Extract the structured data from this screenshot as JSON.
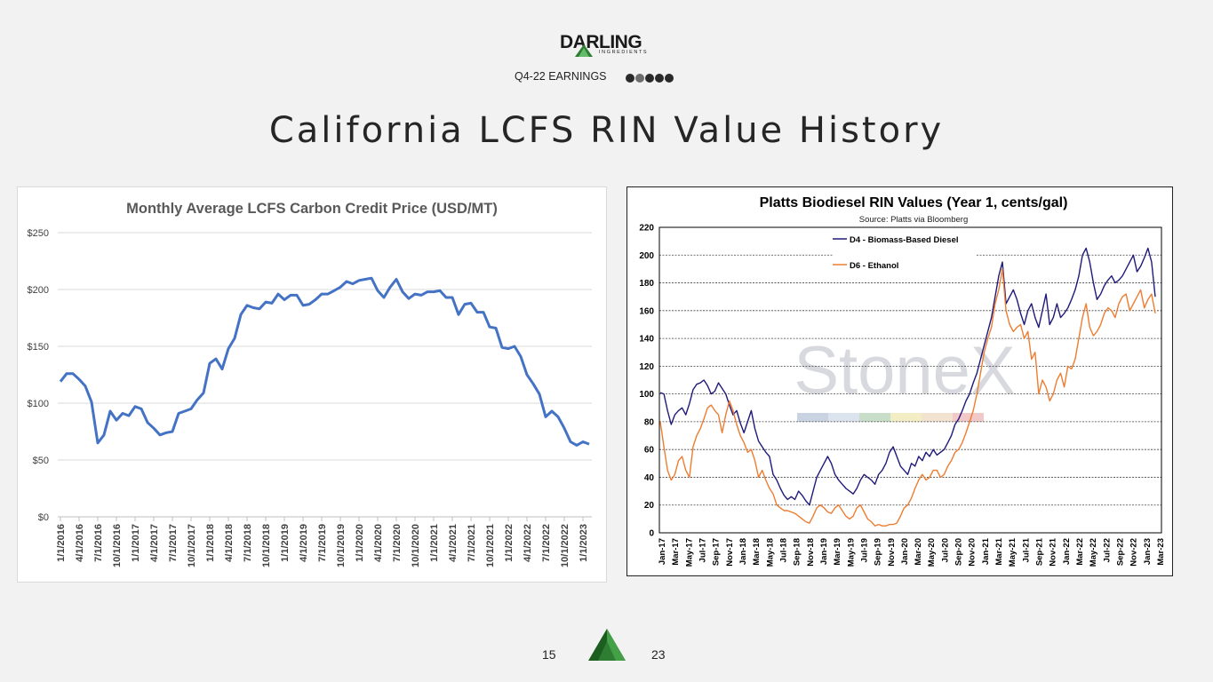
{
  "header": {
    "logo_text": "DARLING",
    "logo_subtext": "INGREDIENTS",
    "section_label": "Q4-22 EARNINGS"
  },
  "slide_title": "California LCFS  RIN Value History",
  "footer": {
    "page_number": "15",
    "year": "23"
  },
  "colors": {
    "lcfs_line": "#4472c4",
    "d4_line": "#1f1a7a",
    "d6_line": "#ed7d31",
    "logo_green": "#3a8a3a"
  },
  "chart_data": [
    {
      "type": "line",
      "title": "Monthly Average LCFS Carbon Credit Price (USD/MT)",
      "xlabel": "",
      "ylabel": "",
      "ylim": [
        0,
        250
      ],
      "yticks": [
        "$0",
        "$50",
        "$100",
        "$150",
        "$200",
        "$250"
      ],
      "x_tick_labels": [
        "1/1/2016",
        "4/1/2016",
        "7/1/2016",
        "10/1/2016",
        "1/1/2017",
        "4/1/2017",
        "7/1/2017",
        "10/1/2017",
        "1/1/2018",
        "4/1/2018",
        "7/1/2018",
        "10/1/2018",
        "1/1/2019",
        "4/1/2019",
        "7/1/2019",
        "10/1/2019",
        "1/1/2020",
        "4/1/2020",
        "7/1/2020",
        "10/1/2020",
        "1/1/2021",
        "4/1/2021",
        "7/1/2021",
        "10/1/2021",
        "1/1/2022",
        "4/1/2022",
        "7/1/2022",
        "10/1/2022",
        "1/1/2023"
      ],
      "grid": true,
      "series": [
        {
          "values": [
            119,
            126,
            126,
            121,
            115,
            101,
            65,
            72,
            93,
            85,
            91,
            89,
            97,
            95,
            83,
            78,
            72,
            74,
            75,
            91,
            93,
            95,
            103,
            109,
            135,
            139,
            130,
            148,
            157,
            178,
            186,
            184,
            183,
            189,
            188,
            196,
            191,
            195,
            195,
            186,
            187,
            191,
            196,
            196,
            199,
            202,
            207,
            205,
            208,
            209,
            210,
            199,
            193,
            202,
            209,
            198,
            192,
            196,
            195,
            198,
            198,
            199,
            193,
            193,
            178,
            187,
            188,
            180,
            180,
            167,
            166,
            149,
            148,
            150,
            141,
            125,
            117,
            108,
            88,
            93,
            88,
            78,
            66,
            63,
            66,
            64
          ]
        }
      ]
    },
    {
      "type": "line",
      "title": "Platts Biodiesel RIN Values (Year 1, cents/gal)",
      "subtitle": "Source: Platts via Bloomberg",
      "watermark": "StoneX",
      "ylim": [
        0,
        220
      ],
      "yticks": [
        "0",
        "20",
        "40",
        "60",
        "80",
        "100",
        "120",
        "140",
        "160",
        "180",
        "200",
        "220"
      ],
      "x_tick_labels": [
        "Jan-17",
        "Mar-17",
        "May-17",
        "Jul-17",
        "Sep-17",
        "Nov-17",
        "Jan-18",
        "Mar-18",
        "May-18",
        "Jul-18",
        "Sep-18",
        "Nov-18",
        "Jan-19",
        "Mar-19",
        "May-19",
        "Jul-19",
        "Sep-19",
        "Nov-19",
        "Jan-20",
        "Mar-20",
        "May-20",
        "Jul-20",
        "Sep-20",
        "Nov-20",
        "Jan-21",
        "Mar-21",
        "May-21",
        "Jul-21",
        "Sep-21",
        "Nov-21",
        "Jan-22",
        "Mar-22",
        "May-22",
        "Jul-22",
        "Sep-22",
        "Nov-22",
        "Jan-23",
        "Mar-23"
      ],
      "legend_position": "top-left",
      "grid": true,
      "series": [
        {
          "name": "D4 - Biomass-Based Diesel",
          "values": [
            101,
            100,
            88,
            78,
            85,
            88,
            90,
            85,
            93,
            103,
            107,
            108,
            110,
            106,
            100,
            102,
            108,
            104,
            100,
            92,
            85,
            88,
            79,
            72,
            80,
            88,
            75,
            66,
            62,
            58,
            55,
            42,
            38,
            32,
            27,
            24,
            26,
            24,
            30,
            27,
            23,
            20,
            30,
            40,
            45,
            50,
            55,
            50,
            42,
            38,
            35,
            32,
            30,
            28,
            32,
            38,
            42,
            40,
            38,
            35,
            42,
            45,
            50,
            58,
            62,
            55,
            48,
            45,
            42,
            50,
            48,
            55,
            52,
            58,
            55,
            60,
            56,
            58,
            60,
            65,
            70,
            78,
            82,
            88,
            95,
            100,
            108,
            115,
            125,
            135,
            145,
            155,
            170,
            185,
            195,
            165,
            170,
            175,
            168,
            158,
            150,
            160,
            165,
            155,
            148,
            160,
            172,
            150,
            155,
            165,
            155,
            158,
            162,
            168,
            175,
            185,
            200,
            205,
            195,
            180,
            168,
            172,
            178,
            182,
            185,
            180,
            182,
            185,
            190,
            195,
            200,
            188,
            192,
            198,
            205,
            195,
            170
          ]
        },
        {
          "name": "D6 - Ethanol",
          "values": [
            80,
            62,
            45,
            38,
            42,
            52,
            55,
            45,
            40,
            62,
            70,
            75,
            82,
            90,
            92,
            88,
            85,
            72,
            85,
            95,
            88,
            78,
            70,
            65,
            58,
            60,
            52,
            40,
            45,
            38,
            32,
            28,
            20,
            18,
            16,
            16,
            15,
            14,
            12,
            10,
            8,
            7,
            12,
            18,
            20,
            18,
            15,
            14,
            18,
            20,
            16,
            12,
            10,
            12,
            18,
            20,
            15,
            10,
            8,
            5,
            6,
            5,
            5,
            6,
            6,
            7,
            12,
            18,
            20,
            25,
            32,
            38,
            42,
            38,
            40,
            45,
            45,
            40,
            42,
            48,
            52,
            58,
            60,
            65,
            72,
            80,
            88,
            100,
            115,
            130,
            140,
            148,
            165,
            175,
            190,
            160,
            150,
            145,
            148,
            150,
            140,
            145,
            125,
            130,
            100,
            110,
            105,
            95,
            100,
            110,
            115,
            105,
            120,
            118,
            125,
            140,
            155,
            165,
            148,
            142,
            145,
            150,
            158,
            162,
            160,
            155,
            165,
            170,
            172,
            160,
            165,
            170,
            175,
            162,
            168,
            172,
            158
          ]
        }
      ]
    }
  ]
}
